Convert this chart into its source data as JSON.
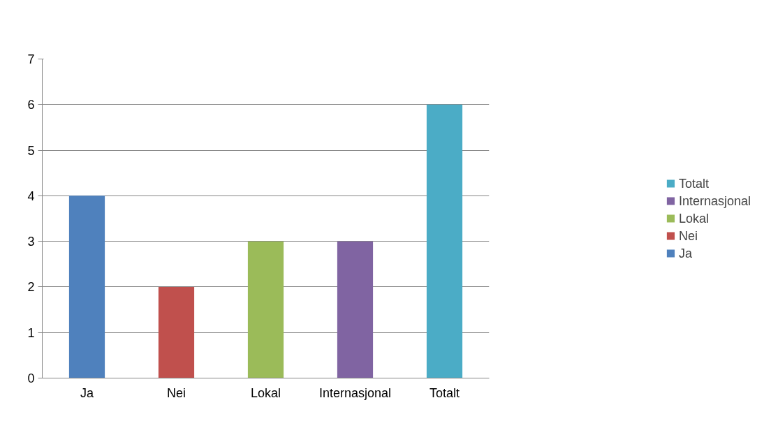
{
  "chart_data": {
    "type": "bar",
    "categories": [
      "Ja",
      "Nei",
      "Lokal",
      "Internasjonal",
      "Totalt"
    ],
    "series": [
      {
        "name": "Ja",
        "color": "#4f81bd",
        "values": [
          4,
          null,
          null,
          null,
          null
        ]
      },
      {
        "name": "Nei",
        "color": "#c0504d",
        "values": [
          null,
          2,
          null,
          null,
          null
        ]
      },
      {
        "name": "Lokal",
        "color": "#9bbb59",
        "values": [
          null,
          null,
          3,
          null,
          null
        ]
      },
      {
        "name": "Internasjonal",
        "color": "#8064a2",
        "values": [
          null,
          null,
          null,
          3,
          null
        ]
      },
      {
        "name": "Totalt",
        "color": "#4bacc6",
        "values": [
          null,
          null,
          null,
          null,
          6
        ]
      }
    ],
    "ylim": [
      0,
      7
    ],
    "yticks": [
      0,
      1,
      2,
      3,
      4,
      5,
      6,
      7
    ],
    "grid": "y",
    "legend": "right"
  }
}
